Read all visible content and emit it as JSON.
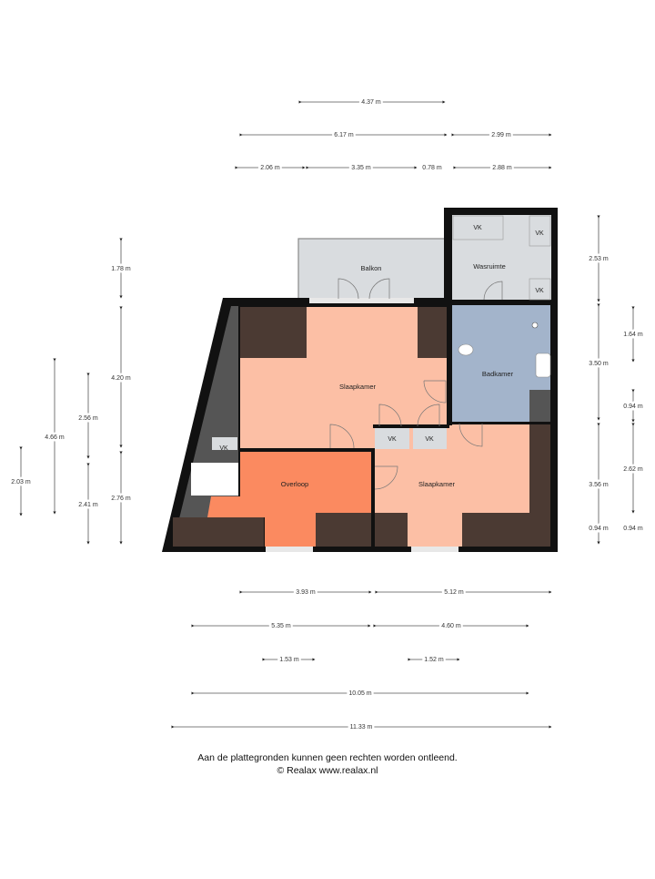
{
  "rooms": {
    "balkon": "Balkon",
    "wasruimte": "Wasruimte",
    "slaapkamer_top": "Slaapkamer",
    "badkamer": "Badkamer",
    "overloop": "Overloop",
    "slaapkamer_bottom": "Slaapkamer",
    "vk": "VK"
  },
  "dimensions": {
    "top": [
      "4.37 m",
      "6.17 m",
      "2.99 m",
      "2.06 m",
      "3.35 m",
      "0.78 m",
      "2.88 m"
    ],
    "left": [
      "1.78 m",
      "4.20 m",
      "2.76 m",
      "4.66 m",
      "2.56 m",
      "2.41 m",
      "2.03 m"
    ],
    "right": [
      "2.53 m",
      "3.50 m",
      "3.56 m",
      "0.94 m",
      "1.64 m",
      "0.94 m",
      "2.62 m",
      "0.94 m"
    ],
    "bottom": [
      "3.93 m",
      "5.12 m",
      "5.35 m",
      "4.60 m",
      "1.53 m",
      "1.52 m",
      "10.05 m",
      "11.33 m"
    ]
  },
  "footer": {
    "disclaimer": "Aan de plattegronden kunnen geen rechten worden ontleend.",
    "copyright": "© Realax www.realax.nl"
  },
  "colors": {
    "wall": "#111111",
    "bedroom": "#fcbfa5",
    "landing": "#fb8a60",
    "bathroom": "#a3b4cb",
    "utility": "#d9dcdf",
    "built_in": "#4b3a33"
  }
}
